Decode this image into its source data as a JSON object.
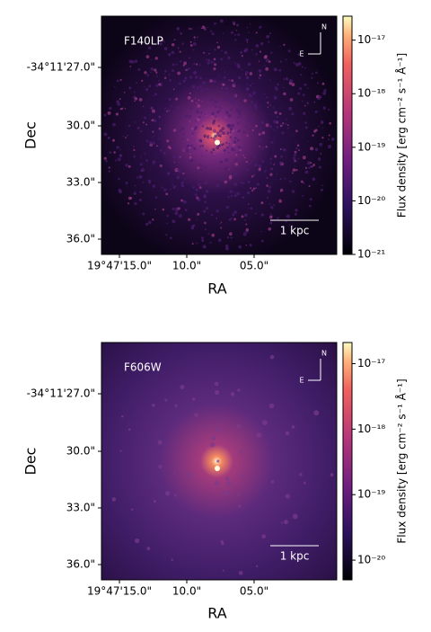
{
  "chart_data": [
    {
      "type": "image",
      "label": "F140LP",
      "scalebar": "1 kpc",
      "north": "N",
      "east": "E",
      "xlabel": "RA",
      "ylabel": "Dec",
      "xticks": [
        "19°47'15.0\"",
        "10.0\"",
        "05.0\""
      ],
      "yticks": [
        "-34°11'27.0\"",
        "30.0\"",
        "33.0\"",
        "36.0\""
      ],
      "colorbar_label": "Flux density [erg cm⁻² s⁻¹ Å⁻¹]",
      "colorbar_log": true,
      "clim": [
        1e-21,
        2.8e-17
      ],
      "colorbar_ticks": [
        {
          "value": 1e-17,
          "label": "10⁻¹⁷"
        },
        {
          "value": 1e-18,
          "label": "10⁻¹⁸"
        },
        {
          "value": 1e-19,
          "label": "10⁻¹⁹"
        },
        {
          "value": 1e-20,
          "label": "10⁻²⁰"
        },
        {
          "value": 1e-21,
          "label": "10⁻²¹"
        }
      ]
    },
    {
      "type": "image",
      "label": "F606W",
      "scalebar": "1 kpc",
      "north": "N",
      "east": "E",
      "xlabel": "RA",
      "ylabel": "Dec",
      "xticks": [
        "19°47'15.0\"",
        "10.0\"",
        "05.0\""
      ],
      "yticks": [
        "-34°11'27.0\"",
        "30.0\"",
        "33.0\"",
        "36.0\""
      ],
      "colorbar_label": "Flux density [erg cm⁻² s⁻¹ Å⁻¹]",
      "colorbar_log": true,
      "clim": [
        5e-21,
        2.1e-17
      ],
      "colorbar_ticks": [
        {
          "value": 1e-17,
          "label": "10⁻¹⁷"
        },
        {
          "value": 1e-18,
          "label": "10⁻¹⁸"
        },
        {
          "value": 1e-19,
          "label": "10⁻¹⁹"
        },
        {
          "value": 1e-20,
          "label": "10⁻²⁰"
        }
      ]
    }
  ]
}
